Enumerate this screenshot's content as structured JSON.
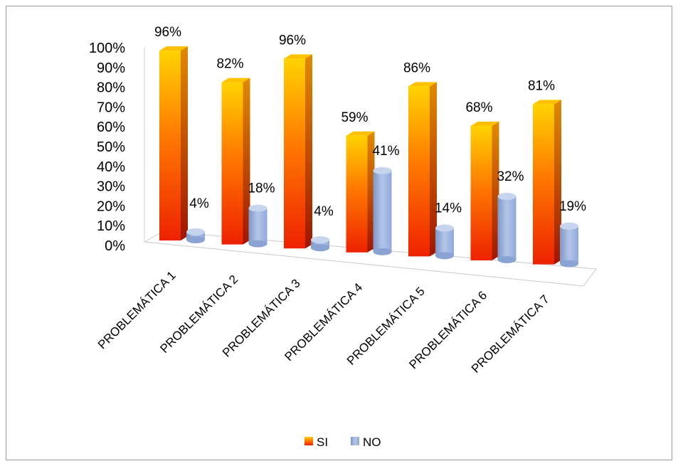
{
  "chart_data": {
    "type": "bar",
    "title": "",
    "xlabel": "",
    "ylabel": "",
    "categories": [
      "PROBLEMÁTICA 1",
      "PROBLEMÁTICA 2",
      "PROBLEMÁTICA 3",
      "PROBLEMÁTICA 4",
      "PROBLEMÁTICA 5",
      "PROBLEMÁTICA 6",
      "PROBLEMÁTICA 7"
    ],
    "series": [
      {
        "name": "SI",
        "values": [
          96,
          82,
          96,
          59,
          86,
          68,
          81
        ],
        "labels": [
          "96%",
          "82%",
          "96%",
          "59%",
          "86%",
          "68%",
          "81%"
        ],
        "color": "#ff4a00"
      },
      {
        "name": "NO",
        "values": [
          4,
          18,
          4,
          41,
          14,
          32,
          19
        ],
        "labels": [
          "4%",
          "18%",
          "4%",
          "41%",
          "14%",
          "32%",
          "19%"
        ],
        "color": "#8faadc"
      }
    ],
    "ylim": [
      0,
      100
    ],
    "yticks": [
      "0%",
      "10%",
      "20%",
      "30%",
      "40%",
      "50%",
      "60%",
      "70%",
      "80%",
      "90%",
      "100%"
    ],
    "style": "3d-clustered-column",
    "grid": false,
    "legend_position": "bottom"
  }
}
